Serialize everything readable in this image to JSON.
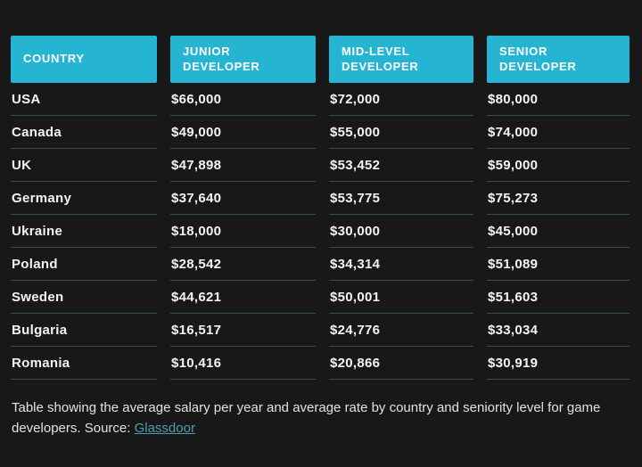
{
  "chart_data": {
    "type": "table",
    "columns": [
      "COUNTRY",
      "JUNIOR DEVELOPER",
      "MID-LEVEL DEVELOPER",
      "SENIOR DEVELOPER"
    ],
    "rows": [
      [
        "USA",
        "$66,000",
        "$72,000",
        "$80,000"
      ],
      [
        "Canada",
        "$49,000",
        "$55,000",
        "$74,000"
      ],
      [
        "UK",
        "$47,898",
        "$53,452",
        "$59,000"
      ],
      [
        "Germany",
        "$37,640",
        "$53,775",
        "$75,273"
      ],
      [
        "Ukraine",
        "$18,000",
        "$30,000",
        "$45,000"
      ],
      [
        "Poland",
        "$28,542",
        "$34,314",
        "$51,089"
      ],
      [
        "Sweden",
        "$44,621",
        "$50,001",
        "$51,603"
      ],
      [
        "Bulgaria",
        "$16,517",
        "$24,776",
        "$33,034"
      ],
      [
        "Romania",
        "$10,416",
        "$20,866",
        "$30,919"
      ]
    ],
    "title": "",
    "legend_position": "none",
    "grid": "horizontal-dividers"
  },
  "caption": {
    "text": "Table showing the average salary per year and average rate by country and seniority level for game developers. Source: ",
    "link_label": "Glassdoor"
  },
  "colors": {
    "background": "#181818",
    "accent": "#25b5d3",
    "divider": "#2f4f4c",
    "header_text": "#ffffff",
    "row_text": "#f4f4f4",
    "caption_text": "#e2e2e2",
    "link": "#4d9fae"
  }
}
